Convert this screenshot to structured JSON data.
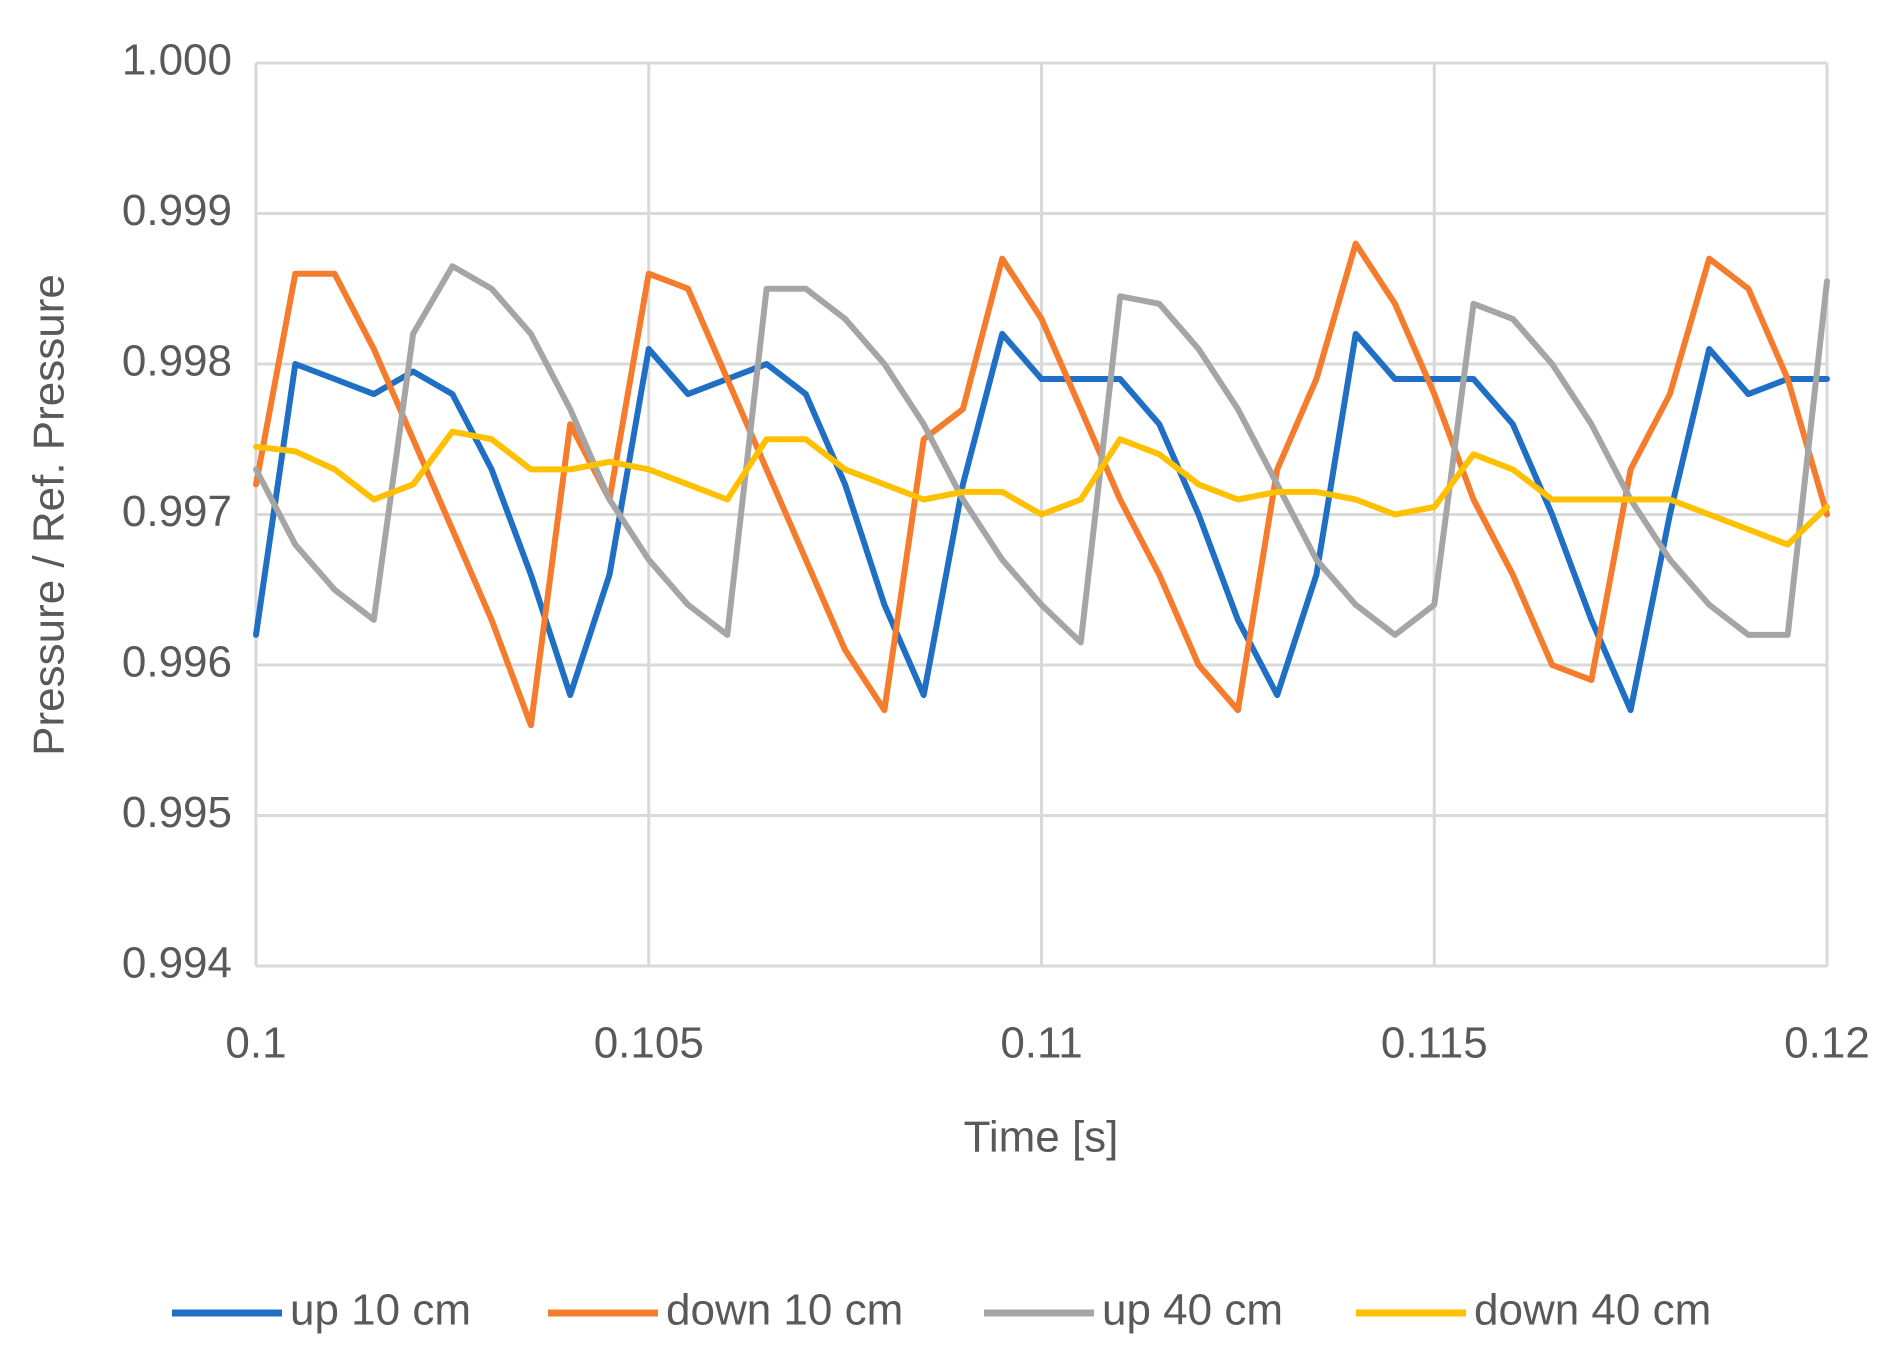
{
  "chart_data": {
    "type": "line",
    "xlabel": "Time [s]",
    "ylabel": "Pressure / Ref. Pressure",
    "xlim": [
      0.1,
      0.12
    ],
    "xticks": [
      0.1,
      0.105,
      0.11,
      0.115,
      0.12
    ],
    "ylim": [
      0.994,
      1.0
    ],
    "yticks": [
      0.994,
      0.995,
      0.996,
      0.997,
      0.998,
      0.999,
      {
        "value": 1.0,
        "label": "1.000"
      }
    ],
    "grid": true,
    "legend": "bottom",
    "x": [
      0.1,
      0.1005,
      0.101,
      0.1015,
      0.102,
      0.1025,
      0.103,
      0.1035,
      0.104,
      0.1045,
      0.105,
      0.1055,
      0.106,
      0.1065,
      0.107,
      0.1075,
      0.108,
      0.1085,
      0.109,
      0.1095,
      0.11,
      0.1105,
      0.111,
      0.1115,
      0.112,
      0.1125,
      0.113,
      0.1135,
      0.114,
      0.1145,
      0.115,
      0.1155,
      0.116,
      0.1165,
      0.117,
      0.1175,
      0.118,
      0.1185,
      0.119,
      0.1195,
      0.12
    ],
    "series": [
      {
        "name": "up 10 cm",
        "color": "#1f6fc4",
        "values": [
          0.9962,
          0.998,
          0.9979,
          0.9978,
          0.99795,
          0.9978,
          0.9973,
          0.9966,
          0.9958,
          0.9966,
          0.9981,
          0.9978,
          0.9979,
          0.998,
          0.9978,
          0.9972,
          0.9964,
          0.9958,
          0.9972,
          0.9982,
          0.9979,
          0.9979,
          0.9979,
          0.9976,
          0.997,
          0.9963,
          0.9958,
          0.9966,
          0.9982,
          0.9979,
          0.9979,
          0.9979,
          0.9976,
          0.997,
          0.9963,
          0.9957,
          0.997,
          0.9981,
          0.9978,
          0.9979,
          0.9979
        ]
      },
      {
        "name": "down 10 cm",
        "color": "#f47c2c",
        "values": [
          0.9972,
          0.9986,
          0.9986,
          0.9981,
          0.9975,
          0.9969,
          0.9963,
          0.9956,
          0.9976,
          0.9971,
          0.9986,
          0.9985,
          0.9979,
          0.9973,
          0.9967,
          0.9961,
          0.9957,
          0.9975,
          0.9977,
          0.9987,
          0.9983,
          0.9977,
          0.9971,
          0.9966,
          0.996,
          0.9957,
          0.9973,
          0.9979,
          0.9988,
          0.9984,
          0.9978,
          0.9971,
          0.9966,
          0.996,
          0.9959,
          0.9973,
          0.9978,
          0.9987,
          0.9985,
          0.9979,
          0.997
        ]
      },
      {
        "name": "up 40 cm",
        "color": "#a5a5a5",
        "values": [
          0.9973,
          0.9968,
          0.9965,
          0.9963,
          0.9982,
          0.99865,
          0.9985,
          0.9982,
          0.9977,
          0.9971,
          0.9967,
          0.9964,
          0.9962,
          0.9985,
          0.9985,
          0.9983,
          0.998,
          0.9976,
          0.9971,
          0.9967,
          0.9964,
          0.99615,
          0.99845,
          0.9984,
          0.9981,
          0.9977,
          0.9972,
          0.9967,
          0.9964,
          0.9962,
          0.9964,
          0.9984,
          0.9983,
          0.998,
          0.9976,
          0.9971,
          0.9967,
          0.9964,
          0.9962,
          0.9962,
          0.99855
        ]
      },
      {
        "name": "down 40 cm",
        "color": "#ffc000",
        "values": [
          0.99745,
          0.99742,
          0.9973,
          0.9971,
          0.9972,
          0.99755,
          0.9975,
          0.9973,
          0.9973,
          0.99735,
          0.9973,
          0.9972,
          0.9971,
          0.9975,
          0.9975,
          0.9973,
          0.9972,
          0.9971,
          0.99715,
          0.99715,
          0.997,
          0.9971,
          0.9975,
          0.9974,
          0.9972,
          0.9971,
          0.99715,
          0.99715,
          0.9971,
          0.997,
          0.99705,
          0.9974,
          0.9973,
          0.9971,
          0.9971,
          0.9971,
          0.9971,
          0.997,
          0.9969,
          0.9968,
          0.99705
        ]
      }
    ]
  }
}
